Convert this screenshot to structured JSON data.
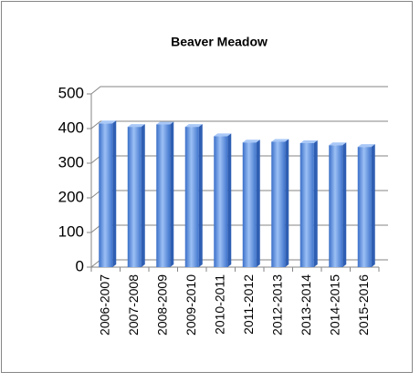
{
  "chart_data": {
    "type": "bar",
    "title": "Beaver Meadow",
    "categories": [
      "2006-2007",
      "2007-2008",
      "2008-2009",
      "2009-2010",
      "2010-2011",
      "2011-2012",
      "2012-2013",
      "2013-2014",
      "2014-2015",
      "2015-2016"
    ],
    "values": [
      415,
      405,
      412,
      405,
      378,
      360,
      362,
      358,
      352,
      347
    ],
    "color": "#5b8ee0",
    "ylim": [
      0,
      500
    ],
    "yticks": [
      0,
      100,
      200,
      300,
      400,
      500
    ],
    "grid": true
  }
}
